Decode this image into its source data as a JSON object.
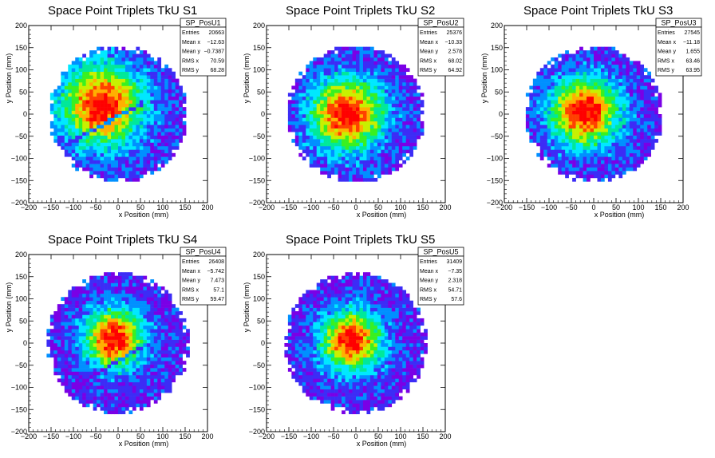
{
  "chart_data": [
    {
      "type": "heatmap",
      "title": "Space Point Triplets TkU S1",
      "xlabel": "x Position (mm)",
      "ylabel": "y Position (mm)",
      "xlim": [
        -200,
        200
      ],
      "ylim": [
        -200,
        200
      ],
      "x_ticks": [
        "−200",
        "−150",
        "−100",
        "−50",
        "0",
        "50",
        "100",
        "150",
        "200"
      ],
      "y_ticks": [
        "−200",
        "−150",
        "−100",
        "−50",
        "0",
        "50",
        "100",
        "150",
        "200"
      ],
      "stats": {
        "name": "SP_PosU1",
        "rows": [
          {
            "label": "Entries",
            "value": "20663"
          },
          {
            "label": "Mean x",
            "value": "−12.63"
          },
          {
            "label": "Mean y",
            "value": "−0.7387"
          },
          {
            "label": "RMS x",
            "value": "70.59"
          },
          {
            "label": "RMS y",
            "value": "68.28"
          }
        ]
      },
      "distribution": {
        "radius": 155,
        "center_x": -35,
        "center_y": 20,
        "sigma": 62,
        "gap_line": {
          "slope": 0.55,
          "intercept": -5
        }
      }
    },
    {
      "type": "heatmap",
      "title": "Space Point Triplets TkU S2",
      "xlabel": "x Position (mm)",
      "ylabel": "y Position (mm)",
      "xlim": [
        -200,
        200
      ],
      "ylim": [
        -200,
        200
      ],
      "x_ticks": [
        "−200",
        "−150",
        "−100",
        "−50",
        "0",
        "50",
        "100",
        "150",
        "200"
      ],
      "y_ticks": [
        "−200",
        "−150",
        "−100",
        "−50",
        "0",
        "50",
        "100",
        "150",
        "200"
      ],
      "stats": {
        "name": "SP_PosU2",
        "rows": [
          {
            "label": "Entries",
            "value": "25376"
          },
          {
            "label": "Mean x",
            "value": "−10.33"
          },
          {
            "label": "Mean y",
            "value": "2.578"
          },
          {
            "label": "RMS x",
            "value": "68.02"
          },
          {
            "label": "RMS y",
            "value": "64.92"
          }
        ]
      },
      "distribution": {
        "radius": 155,
        "center_x": -20,
        "center_y": 0,
        "sigma": 55,
        "gap_line": null
      }
    },
    {
      "type": "heatmap",
      "title": "Space Point Triplets TkU S3",
      "xlabel": "x Position (mm)",
      "ylabel": "y Position (mm)",
      "xlim": [
        -200,
        200
      ],
      "ylim": [
        -200,
        200
      ],
      "x_ticks": [
        "−200",
        "−150",
        "−100",
        "−50",
        "0",
        "50",
        "100",
        "150",
        "200"
      ],
      "y_ticks": [
        "−200",
        "−150",
        "−100",
        "−50",
        "0",
        "50",
        "100",
        "150",
        "200"
      ],
      "stats": {
        "name": "SP_PosU3",
        "rows": [
          {
            "label": "Entries",
            "value": "27545"
          },
          {
            "label": "Mean x",
            "value": "−11.18"
          },
          {
            "label": "Mean y",
            "value": "1.655"
          },
          {
            "label": "RMS x",
            "value": "63.46"
          },
          {
            "label": "RMS y",
            "value": "63.95"
          }
        ]
      },
      "distribution": {
        "radius": 155,
        "center_x": -20,
        "center_y": 5,
        "sigma": 52,
        "gap_line": null
      }
    },
    {
      "type": "heatmap",
      "title": "Space Point Triplets TkU S4",
      "xlabel": "x Position (mm)",
      "ylabel": "y Position (mm)",
      "xlim": [
        -200,
        200
      ],
      "ylim": [
        -200,
        200
      ],
      "x_ticks": [
        "−200",
        "−150",
        "−100",
        "−50",
        "0",
        "50",
        "100",
        "150",
        "200"
      ],
      "y_ticks": [
        "−200",
        "−150",
        "−100",
        "−50",
        "0",
        "50",
        "100",
        "150",
        "200"
      ],
      "stats": {
        "name": "SP_PosU4",
        "rows": [
          {
            "label": "Entries",
            "value": "26408"
          },
          {
            "label": "Mean x",
            "value": "−5.742"
          },
          {
            "label": "Mean y",
            "value": "7.473"
          },
          {
            "label": "RMS x",
            "value": "57.1"
          },
          {
            "label": "RMS y",
            "value": "59.47"
          }
        ]
      },
      "distribution": {
        "radius": 160,
        "center_x": -10,
        "center_y": 10,
        "sigma": 45,
        "gap_line": {
          "slope": 0.6,
          "intercept": -40
        }
      }
    },
    {
      "type": "heatmap",
      "title": "Space Point Triplets TkU S5",
      "xlabel": "x Position (mm)",
      "ylabel": "y Position (mm)",
      "xlim": [
        -200,
        200
      ],
      "ylim": [
        -200,
        200
      ],
      "x_ticks": [
        "−200",
        "−150",
        "−100",
        "−50",
        "0",
        "50",
        "100",
        "150",
        "200"
      ],
      "y_ticks": [
        "−200",
        "−150",
        "−100",
        "−50",
        "0",
        "50",
        "100",
        "150",
        "200"
      ],
      "stats": {
        "name": "SP_PosU5",
        "rows": [
          {
            "label": "Entries",
            "value": "31409"
          },
          {
            "label": "Mean x",
            "value": "−7.35"
          },
          {
            "label": "Mean y",
            "value": "2.318"
          },
          {
            "label": "RMS x",
            "value": "54.71"
          },
          {
            "label": "RMS y",
            "value": "57.6"
          }
        ]
      },
      "distribution": {
        "radius": 160,
        "center_x": -10,
        "center_y": 5,
        "sigma": 45,
        "gap_line": null
      }
    }
  ],
  "colors": {
    "palette": [
      "#7a00e6",
      "#3c2cf6",
      "#0090ff",
      "#00e8ff",
      "#00e89a",
      "#39f020",
      "#c8f000",
      "#ffb000",
      "#ff4000",
      "#ff0000"
    ],
    "frame": "#000000",
    "background": "#ffffff"
  }
}
